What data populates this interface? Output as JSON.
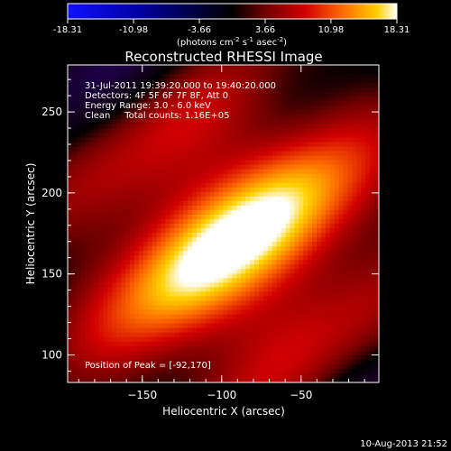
{
  "chart_data": {
    "type": "heatmap",
    "title": "Reconstructed RHESSI Image",
    "colorbar": {
      "min": -18.31,
      "max": 18.31,
      "ticks": [
        "-18.31",
        "-10.98",
        "-3.66",
        "3.66",
        "10.98",
        "18.31"
      ],
      "tick_values": [
        -18.31,
        -10.98,
        -3.66,
        3.66,
        10.98,
        18.31
      ],
      "unit_label_parts": [
        "(photons cm",
        "-2",
        " s",
        "-1",
        " asec",
        "-2",
        ")"
      ],
      "colors": [
        "#1010ff",
        "#0000a0",
        "#000000",
        "#600000",
        "#d00000",
        "#ff7000",
        "#ffd000",
        "#ffffff"
      ]
    },
    "xlabel": "Heliocentric X (arcsec)",
    "ylabel": "Heliocentric Y (arcsec)",
    "xlim": [
      -197,
      -1
    ],
    "ylim": [
      83,
      279
    ],
    "xticks": [
      -150,
      -100,
      -50
    ],
    "xtick_labels": [
      "−150",
      "−100",
      "−50"
    ],
    "yticks": [
      100,
      150,
      200,
      250
    ],
    "ytick_labels": [
      "100",
      "150",
      "200",
      "250"
    ],
    "annotations": [
      "31-Jul-2011 19:39:20.000 to 19:40:20.000",
      "Detectors: 4F 5F 6F 7F 8F, Att 0",
      "Energy Range: 3.0 - 6.0 keV",
      "Clean     Total counts: 1.16E+05"
    ],
    "peak_label": "Position of Peak = [-92,170]",
    "peak": [
      -92,
      170
    ],
    "footer_date": "10-Aug-2013 21:52",
    "grid": false
  }
}
